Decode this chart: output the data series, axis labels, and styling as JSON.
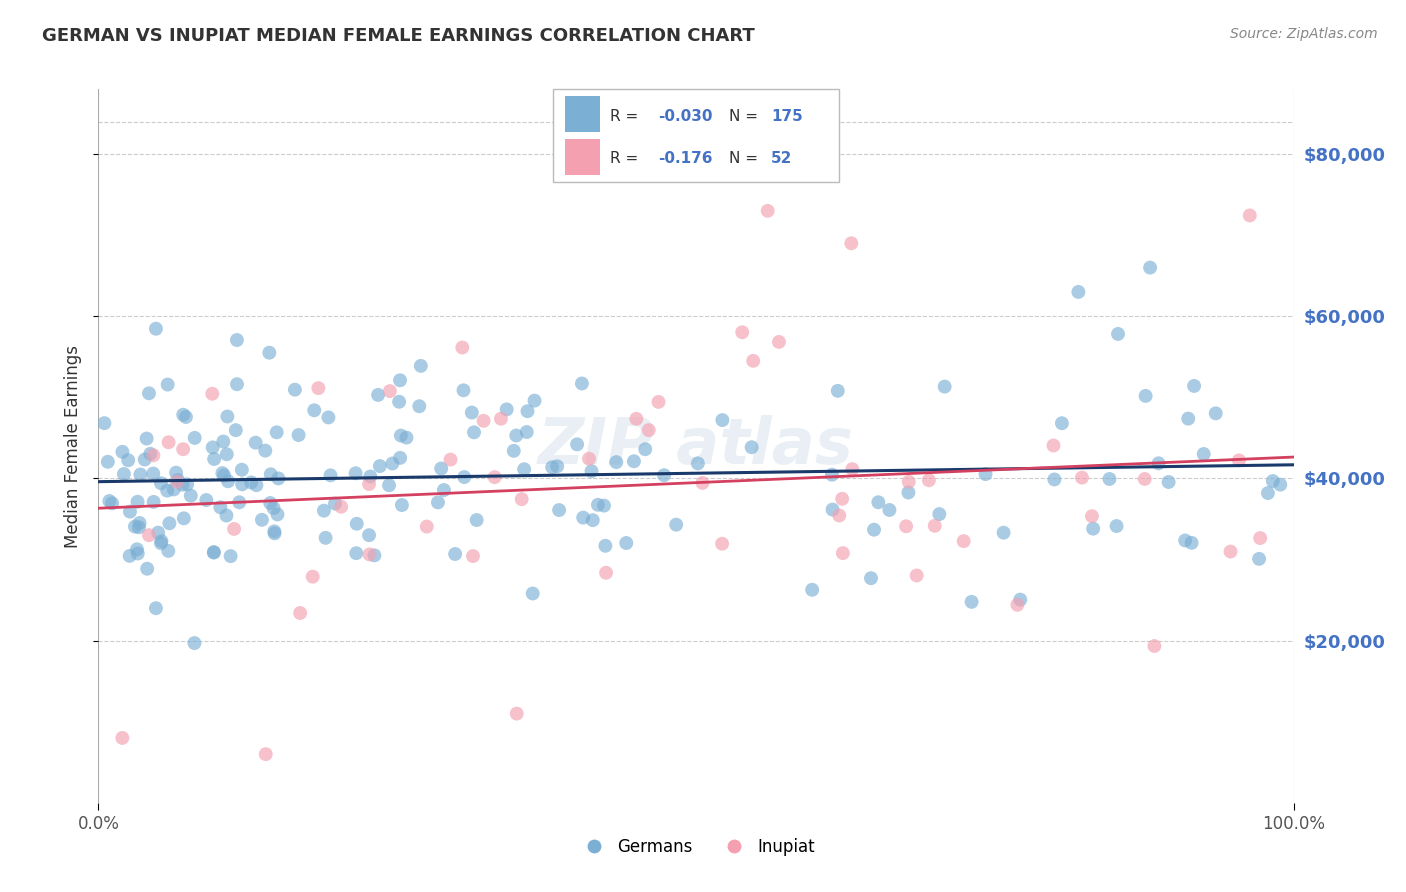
{
  "title": "GERMAN VS INUPIAT MEDIAN FEMALE EARNINGS CORRELATION CHART",
  "source": "Source: ZipAtlas.com",
  "ylabel": "Median Female Earnings",
  "xlim": [
    0.0,
    1.0
  ],
  "ylim": [
    0,
    88000
  ],
  "yticks": [
    20000,
    40000,
    60000,
    80000
  ],
  "ytick_labels": [
    "$20,000",
    "$40,000",
    "$60,000",
    "$80,000"
  ],
  "xtick_labels": [
    "0.0%",
    "100.0%"
  ],
  "background_color": "#ffffff",
  "grid_color": "#cccccc",
  "german_color": "#7bafd4",
  "inupiat_color": "#f4a0b0",
  "german_line_color": "#1a3a6b",
  "inupiat_line_color": "#d44060",
  "german_R": -0.03,
  "german_N": 175,
  "inupiat_R": -0.176,
  "inupiat_N": 52,
  "legend_german_label": "Germans",
  "legend_inupiat_label": "Inupiat",
  "blue_text_color": "#4472c4",
  "title_fontsize": 13,
  "source_fontsize": 10
}
